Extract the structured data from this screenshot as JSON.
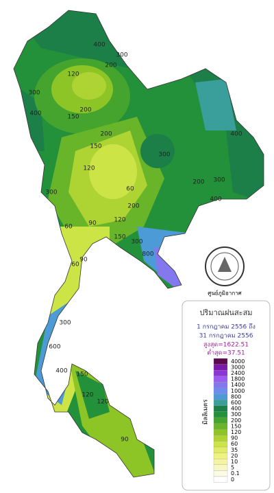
{
  "map": {
    "contour_labels": [
      "400",
      "300",
      "200",
      "120",
      "300",
      "400",
      "150",
      "200",
      "200",
      "150",
      "120",
      "60",
      "300",
      "200",
      "300",
      "400",
      "400",
      "200",
      "120",
      "150",
      "90",
      "60",
      "60",
      "90",
      "300",
      "800",
      "300",
      "300",
      "600",
      "400",
      "150",
      "120",
      "90",
      "120"
    ]
  },
  "logo": {
    "caption": "ศูนย์ภูมิอากาศ"
  },
  "legend": {
    "title": "ปริมาณฝนสะสม",
    "period_start": "1 กรกฎาคม 2556  ถึง",
    "period_end": "31 กรกฎาคม 2556",
    "max": "สูงสุด=1622.51",
    "min": "ต่ำสุด=37.51",
    "unit": "มิลลิเมตร",
    "items": [
      {
        "label": "4000",
        "color": "#5c0a4e"
      },
      {
        "label": "3000",
        "color": "#7a1aa8"
      },
      {
        "label": "2400",
        "color": "#8a35d8"
      },
      {
        "label": "1800",
        "color": "#9d5cf0"
      },
      {
        "label": "1400",
        "color": "#8478ee"
      },
      {
        "label": "1000",
        "color": "#6c8cf0"
      },
      {
        "label": "800",
        "color": "#4c9ad6"
      },
      {
        "label": "600",
        "color": "#3a9e9a"
      },
      {
        "label": "400",
        "color": "#1d7f48"
      },
      {
        "label": "300",
        "color": "#23903a"
      },
      {
        "label": "200",
        "color": "#44a42e"
      },
      {
        "label": "150",
        "color": "#68b52a"
      },
      {
        "label": "120",
        "color": "#8ec526"
      },
      {
        "label": "90",
        "color": "#aed434"
      },
      {
        "label": "60",
        "color": "#cde446"
      },
      {
        "label": "35",
        "color": "#e0ec62"
      },
      {
        "label": "20",
        "color": "#eef27e"
      },
      {
        "label": "10",
        "color": "#f4f4a2"
      },
      {
        "label": "5",
        "color": "#f8f8c4"
      },
      {
        "label": "0.1",
        "color": "#fcfce4"
      },
      {
        "label": "0",
        "color": "#ffffff"
      }
    ]
  }
}
